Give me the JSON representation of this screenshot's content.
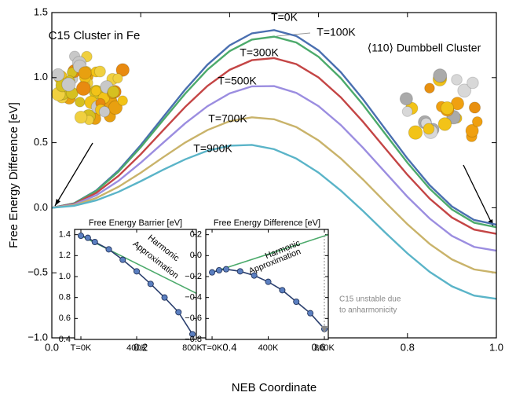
{
  "chart_data": [
    {
      "type": "line",
      "xlabel": "NEB Coordinate",
      "ylabel": "Free Energy Difference [eV]",
      "annotations": [
        "C15 Cluster in Fe",
        "⟨110⟩ Dumbbell Cluster"
      ],
      "xlim": [
        0,
        1
      ],
      "ylim": [
        -1,
        1.5
      ],
      "xticks": [
        {
          "value": 0,
          "label": "0.0"
        },
        0.2,
        0.4,
        0.6,
        0.8,
        {
          "value": 1,
          "label": "1.0"
        }
      ],
      "yticks": [
        {
          "value": -1,
          "label": "−1.0"
        },
        {
          "value": -0.5,
          "label": "−0.5"
        },
        {
          "value": 0,
          "label": "0.0"
        },
        0.5,
        {
          "value": 1,
          "label": "1.0"
        },
        1.5
      ],
      "x": [
        0,
        0.05,
        0.1,
        0.15,
        0.2,
        0.25,
        0.3,
        0.35,
        0.4,
        0.45,
        0.5,
        0.55,
        0.6,
        0.65,
        0.7,
        0.75,
        0.8,
        0.85,
        0.9,
        0.95,
        1
      ],
      "series": [
        {
          "name": "T=0K",
          "color": "#4a6fb0",
          "values": [
            0,
            0.034,
            0.133,
            0.287,
            0.481,
            0.695,
            0.908,
            1.099,
            1.248,
            1.34,
            1.365,
            1.32,
            1.209,
            1.042,
            0.834,
            0.605,
            0.378,
            0.173,
            0.01,
            -0.094,
            -0.13
          ]
        },
        {
          "name": "T=100K",
          "color": "#4caa6b",
          "values": [
            0,
            0.033,
            0.129,
            0.277,
            0.465,
            0.672,
            0.877,
            1.061,
            1.204,
            1.292,
            1.315,
            1.27,
            1.16,
            0.996,
            0.792,
            0.568,
            0.346,
            0.146,
            -0.013,
            -0.115,
            -0.15
          ]
        },
        {
          "name": "T=300K",
          "color": "#c44545",
          "values": [
            0,
            0.029,
            0.114,
            0.245,
            0.411,
            0.594,
            0.775,
            0.936,
            1.06,
            1.134,
            1.15,
            1.104,
            1.001,
            0.849,
            0.661,
            0.456,
            0.253,
            0.07,
            -0.075,
            -0.168,
            -0.2
          ]
        },
        {
          "name": "T=500K",
          "color": "#9b8de0",
          "values": [
            0,
            0.025,
            0.096,
            0.207,
            0.346,
            0.498,
            0.649,
            0.78,
            0.879,
            0.933,
            0.935,
            0.883,
            0.781,
            0.636,
            0.461,
            0.272,
            0.084,
            -0.083,
            -0.216,
            -0.301,
            -0.33
          ]
        },
        {
          "name": "T=700K",
          "color": "#c9b36a",
          "values": [
            0,
            0.019,
            0.075,
            0.161,
            0.269,
            0.387,
            0.501,
            0.597,
            0.665,
            0.695,
            0.68,
            0.62,
            0.517,
            0.379,
            0.217,
            0.043,
            -0.127,
            -0.278,
            -0.397,
            -0.474,
            -0.5
          ]
        },
        {
          "name": "T=900K",
          "color": "#5ab4c8",
          "values": [
            0,
            0.015,
            0.057,
            0.122,
            0.204,
            0.291,
            0.372,
            0.438,
            0.477,
            0.483,
            0.45,
            0.378,
            0.27,
            0.132,
            -0.025,
            -0.191,
            -0.351,
            -0.493,
            -0.604,
            -0.675,
            -0.7
          ]
        }
      ]
    },
    {
      "type": "line",
      "title": "Free Energy Barrier [eV]",
      "annotations": [
        "Harmonic",
        "Approximation"
      ],
      "xlim": [
        -45,
        828
      ],
      "ylim": [
        0.4,
        1.45
      ],
      "xticks": [
        {
          "value": 0,
          "label": "T=0K"
        },
        {
          "value": 400,
          "label": "400K"
        },
        {
          "value": 800,
          "label": "800K"
        }
      ],
      "yticks": [
        0.4,
        0.6,
        0.8,
        {
          "value": 1,
          "label": "1.0"
        },
        1.2,
        1.4
      ],
      "series": [
        {
          "color": "#4caa6b",
          "x": [
            0,
            828
          ],
          "values": [
            1.39,
            0.84
          ]
        },
        {
          "color": "#2a3f6e",
          "marker_color": "#5b7fc0",
          "markers": true,
          "x": [
            0,
            50,
            100,
            200,
            300,
            400,
            500,
            600,
            700,
            800
          ],
          "values": [
            1.39,
            1.37,
            1.33,
            1.26,
            1.16,
            1.05,
            0.93,
            0.8,
            0.66,
            0.45
          ]
        }
      ]
    },
    {
      "type": "line",
      "title": "Free Energy Difference [eV]",
      "annotations": [
        "Harmonic",
        "Approximation",
        "C15 unstable due",
        "to anharmonicity"
      ],
      "xlim": [
        -45,
        828
      ],
      "ylim": [
        -0.8,
        0.25
      ],
      "xticks": [
        {
          "value": 0,
          "label": "T=0K"
        },
        {
          "value": 400,
          "label": "400K"
        },
        {
          "value": 800,
          "label": "800K"
        }
      ],
      "yticks": [
        {
          "value": -0.8,
          "label": "−0.8"
        },
        {
          "value": -0.6,
          "label": "−0.6"
        },
        {
          "value": -0.4,
          "label": "−0.4"
        },
        {
          "value": -0.2,
          "label": "−0.2"
        },
        {
          "value": 0,
          "label": "0.0"
        },
        0.2
      ],
      "series": [
        {
          "color": "#4caa6b",
          "x": [
            0,
            828
          ],
          "values": [
            -0.16,
            0.2
          ]
        },
        {
          "color": "#2a3f6e",
          "marker_color": "#5b7fc0",
          "markers": true,
          "x": [
            0,
            50,
            100,
            200,
            300,
            400,
            500,
            600,
            700,
            800
          ],
          "values": [
            -0.16,
            -0.14,
            -0.13,
            -0.15,
            -0.19,
            -0.25,
            -0.33,
            -0.44,
            -0.55,
            -0.7
          ]
        }
      ]
    }
  ]
}
